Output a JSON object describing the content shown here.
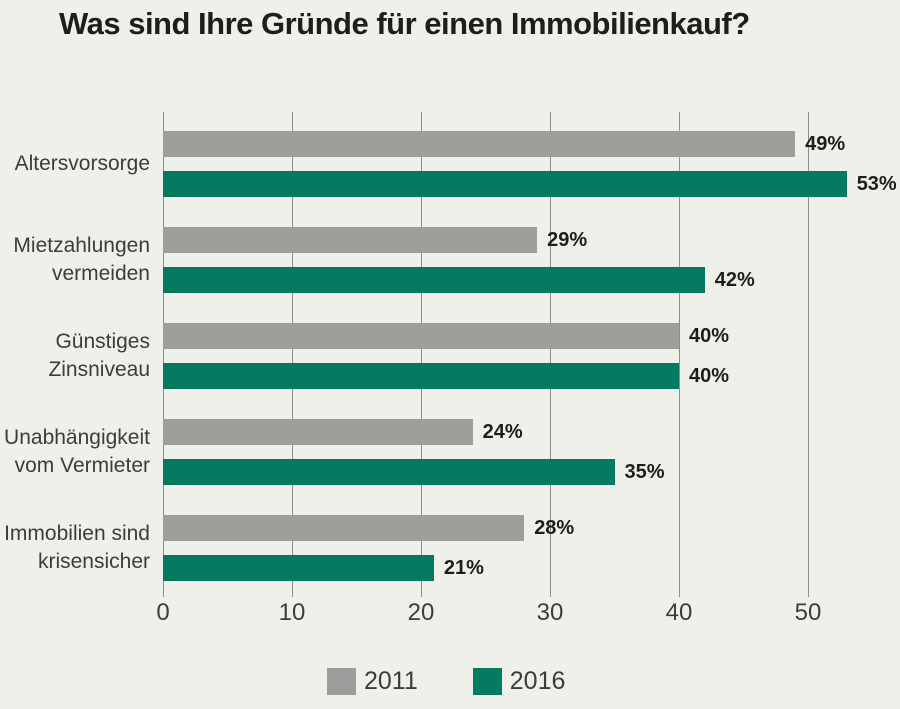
{
  "title": "Was sind Ihre Gründe für einen Immobilienkauf?",
  "colors": {
    "background": "#f0f0eb",
    "grid": "#8c8c8c",
    "title_text": "#1d1d1b",
    "label_text": "#3c3c3b",
    "series_2011": "#9d9d9c",
    "series_2016": "#047a60"
  },
  "chart_data": {
    "type": "bar",
    "orientation": "horizontal",
    "title": "Was sind Ihre Gründe für einen Immobilienkauf?",
    "categories": [
      "Altersvorsorge",
      "Mietzahlungen vermeiden",
      "Günstiges Zinsniveau",
      "Unabhängigkeit vom Vermieter",
      "Immobilien sind krisensicher"
    ],
    "category_lines": [
      [
        "Altersvorsorge"
      ],
      [
        "Mietzahlungen",
        "vermeiden"
      ],
      [
        "Günstiges",
        "Zinsniveau"
      ],
      [
        "Unabhängigkeit",
        "vom Vermieter"
      ],
      [
        "Immobilien sind",
        "krisensicher"
      ]
    ],
    "series": [
      {
        "name": "2011",
        "color": "#9d9d9c",
        "values": [
          49,
          29,
          40,
          24,
          28
        ]
      },
      {
        "name": "2016",
        "color": "#047a60",
        "values": [
          53,
          42,
          40,
          35,
          21
        ]
      }
    ],
    "value_suffix": "%",
    "value_labels": [
      [
        "49%",
        "29%",
        "40%",
        "24%",
        "28%"
      ],
      [
        "53%",
        "42%",
        "40%",
        "35%",
        "21%"
      ]
    ],
    "x_ticks": [
      "0",
      "10",
      "20",
      "30",
      "40",
      "50"
    ],
    "xlim": [
      0,
      56.5
    ],
    "grid": true,
    "legend_position": "bottom"
  }
}
